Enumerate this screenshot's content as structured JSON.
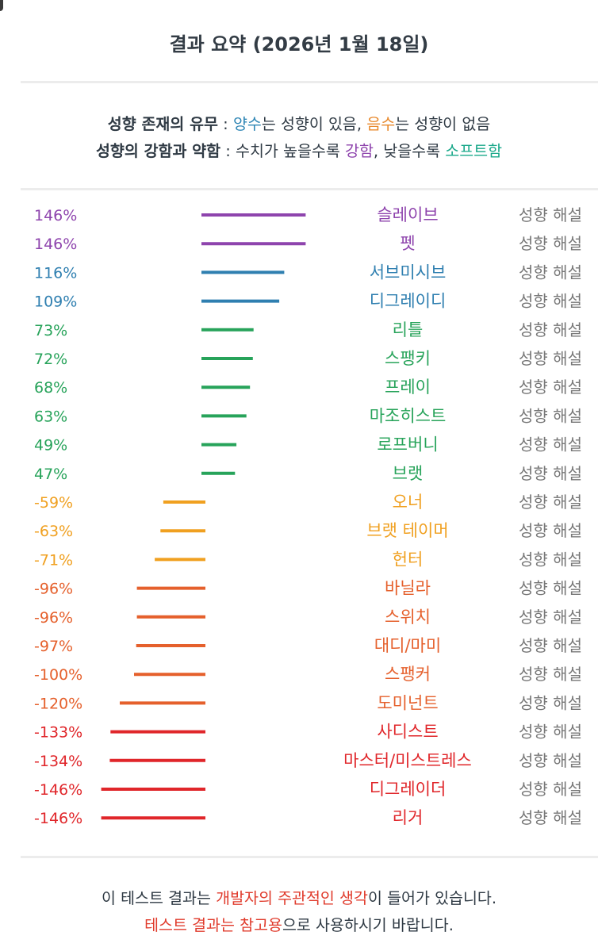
{
  "header": {
    "title": "결과 요약 (2026년 1월 18일)"
  },
  "legend": {
    "line1": {
      "label": "성향 존재의 유무",
      "sep": " : ",
      "positive": "양수",
      "positive_rest": "는 성향이 있음, ",
      "negative": "음수",
      "negative_rest": "는 성향이 없음"
    },
    "line2": {
      "label": "성향의 강함과 약함",
      "sep": " : ",
      "mid": "수치가 높을수록 ",
      "strong": "강함",
      "mid2": ", 낮을수록 ",
      "soft": "소프트함"
    }
  },
  "chart_data": {
    "type": "bar",
    "orientation": "horizontal",
    "value_suffix": "%",
    "row_link_label": "성향 해설",
    "rows": [
      {
        "label": "슬레이브",
        "value": 146,
        "color": "#8e44ad"
      },
      {
        "label": "펫",
        "value": 146,
        "color": "#8e44ad"
      },
      {
        "label": "서브미시브",
        "value": 116,
        "color": "#2f7fb0"
      },
      {
        "label": "디그레이디",
        "value": 109,
        "color": "#2f7fb0"
      },
      {
        "label": "리틀",
        "value": 73,
        "color": "#27a35a"
      },
      {
        "label": "스팽키",
        "value": 72,
        "color": "#27a35a"
      },
      {
        "label": "프레이",
        "value": 68,
        "color": "#27a35a"
      },
      {
        "label": "마조히스트",
        "value": 63,
        "color": "#27a35a"
      },
      {
        "label": "로프버니",
        "value": 49,
        "color": "#27a35a"
      },
      {
        "label": "브랫",
        "value": 47,
        "color": "#27a35a"
      },
      {
        "label": "오너",
        "value": -59,
        "color": "#f0a020"
      },
      {
        "label": "브랫 테이머",
        "value": -63,
        "color": "#f0a020"
      },
      {
        "label": "헌터",
        "value": -71,
        "color": "#f0a020"
      },
      {
        "label": "바닐라",
        "value": -96,
        "color": "#e5602c"
      },
      {
        "label": "스위치",
        "value": -96,
        "color": "#e5602c"
      },
      {
        "label": "대디/마미",
        "value": -97,
        "color": "#e5602c"
      },
      {
        "label": "스팽커",
        "value": -100,
        "color": "#e5602c"
      },
      {
        "label": "도미넌트",
        "value": -120,
        "color": "#e5602c"
      },
      {
        "label": "사디스트",
        "value": -133,
        "color": "#e0262a"
      },
      {
        "label": "마스터/미스트레스",
        "value": -134,
        "color": "#e0262a"
      },
      {
        "label": "디그레이더",
        "value": -146,
        "color": "#e0262a"
      },
      {
        "label": "리거",
        "value": -146,
        "color": "#e0262a"
      }
    ]
  },
  "footer": {
    "line1": {
      "pre": "이 테스트 결과는 ",
      "highlight": "개발자의 주관적인 생각",
      "post": "이 들어가 있습니다."
    },
    "line2": {
      "highlight": "테스트 결과는 참고용",
      "post": "으로 사용하시기 바랍니다."
    }
  },
  "colors": {
    "positive": "#2f86b5",
    "negative": "#e8892c",
    "strong": "#8e44ad",
    "soft": "#1aa88a",
    "warning": "#e03b2c",
    "link": "#777777"
  }
}
